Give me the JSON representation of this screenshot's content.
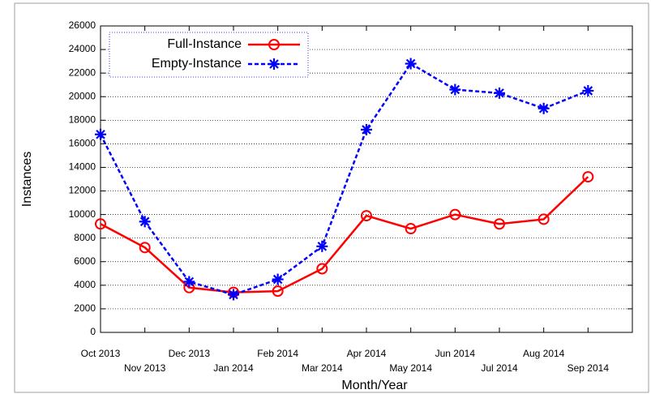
{
  "chart_data": {
    "type": "line",
    "x_label": "Month/Year",
    "y_label": "Instances",
    "categories": [
      "Oct 2013",
      "Nov 2013",
      "Dec 2013",
      "Jan 2014",
      "Feb 2014",
      "Mar 2014",
      "Apr 2014",
      "May 2014",
      "Jun 2014",
      "Jul 2014",
      "Aug 2014",
      "Sep 2014"
    ],
    "series": [
      {
        "name": "Full-Instance",
        "color": "#ff0000",
        "values": [
          9200,
          7200,
          3800,
          3400,
          3500,
          5400,
          9900,
          8800,
          10000,
          9200,
          9600,
          13200
        ]
      },
      {
        "name": "Empty-Instance",
        "color": "#0000ff",
        "values": [
          16800,
          9400,
          4300,
          3200,
          4500,
          7300,
          17200,
          22800,
          20600,
          20300,
          19000,
          20500
        ]
      }
    ],
    "ylim": [
      0,
      26000
    ],
    "yticks": [
      0,
      2000,
      4000,
      6000,
      8000,
      10000,
      12000,
      14000,
      16000,
      18000,
      20000,
      22000,
      24000,
      26000
    ],
    "grid": true
  }
}
